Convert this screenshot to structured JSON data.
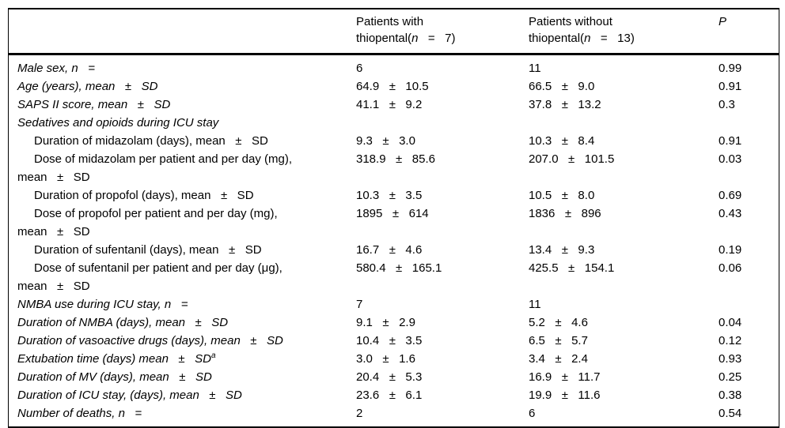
{
  "table": {
    "columns": {
      "with": {
        "top": "Patients with",
        "pre": "thiopental(",
        "var": "n",
        "post": "   =   7)"
      },
      "without": {
        "top": "Patients without",
        "pre": "thiopental(",
        "var": "n",
        "post": "   =   13)"
      },
      "p": "P"
    },
    "rows": [
      {
        "label": "Male sex, n   =",
        "italic": true,
        "indent": false,
        "with": "6",
        "without": "11",
        "p": "0.99"
      },
      {
        "label": "Age (years), mean   ±   SD",
        "italic": true,
        "indent": false,
        "with": "64.9   ±   10.5",
        "without": "66.5   ±   9.0",
        "p": "0.91"
      },
      {
        "label": "SAPS II score, mean   ±   SD",
        "italic": true,
        "indent": false,
        "with": "41.1   ±   9.2",
        "without": "37.8   ±   13.2",
        "p": "0.3"
      },
      {
        "label": "Sedatives and opioids during ICU stay",
        "italic": true,
        "indent": false,
        "with": "",
        "without": "",
        "p": ""
      },
      {
        "label": "Duration of midazolam (days), mean   ±   SD",
        "italic": false,
        "indent": true,
        "with": "9.3   ±   3.0",
        "without": "10.3   ±   8.4",
        "p": "0.91"
      },
      {
        "label": "Dose of midazolam per patient and per day (mg),\nmean   ±   SD",
        "italic": false,
        "indent": true,
        "with": "318.9   ±   85.6",
        "without": "207.0   ±   101.5",
        "p": "0.03"
      },
      {
        "label": "Duration of propofol (days), mean   ±   SD",
        "italic": false,
        "indent": true,
        "with": "10.3   ±   3.5",
        "without": "10.5   ±   8.0",
        "p": "0.69"
      },
      {
        "label": "Dose of propofol per patient and per day (mg),\nmean   ±   SD",
        "italic": false,
        "indent": true,
        "with": "1895   ±   614",
        "without": "1836   ±   896",
        "p": "0.43"
      },
      {
        "label": "Duration of sufentanil (days), mean   ±   SD",
        "italic": false,
        "indent": true,
        "with": "16.7   ±   4.6",
        "without": "13.4   ±   9.3",
        "p": "0.19"
      },
      {
        "label": "Dose of sufentanil per patient and per day (μg),\nmean   ±   SD",
        "italic": false,
        "indent": true,
        "with": "580.4   ±   165.1",
        "without": "425.5   ±   154.1",
        "p": "0.06"
      },
      {
        "label": "NMBA use during ICU stay, n   =",
        "italic": true,
        "indent": false,
        "with": "7",
        "without": "11",
        "p": ""
      },
      {
        "label": "Duration of NMBA (days), mean   ±   SD",
        "italic": true,
        "indent": false,
        "with": "9.1   ±   2.9",
        "without": "5.2   ±   4.6",
        "p": "0.04"
      },
      {
        "label": "Duration of vasoactive drugs (days), mean   ±   SD",
        "italic": true,
        "indent": false,
        "with": "10.4   ±   3.5",
        "without": "6.5   ±   5.7",
        "p": "0.12"
      },
      {
        "label": "Extubation time (days) mean   ±   SD",
        "sup": "a",
        "italic": true,
        "indent": false,
        "with": "3.0   ±   1.6",
        "without": "3.4   ±   2.4",
        "p": "0.93"
      },
      {
        "label": "Duration of MV (days), mean   ±   SD",
        "italic": true,
        "indent": false,
        "with": "20.4   ±   5.3",
        "without": "16.9   ±   11.7",
        "p": "0.25"
      },
      {
        "label": "Duration of ICU stay, (days), mean   ±   SD",
        "italic": true,
        "indent": false,
        "with": "23.6   ±   6.1",
        "without": "19.9   ±   11.6",
        "p": "0.38"
      },
      {
        "label": "Number of deaths, n   =",
        "italic": true,
        "indent": false,
        "with": "2",
        "without": "6",
        "p": "0.54"
      }
    ]
  }
}
